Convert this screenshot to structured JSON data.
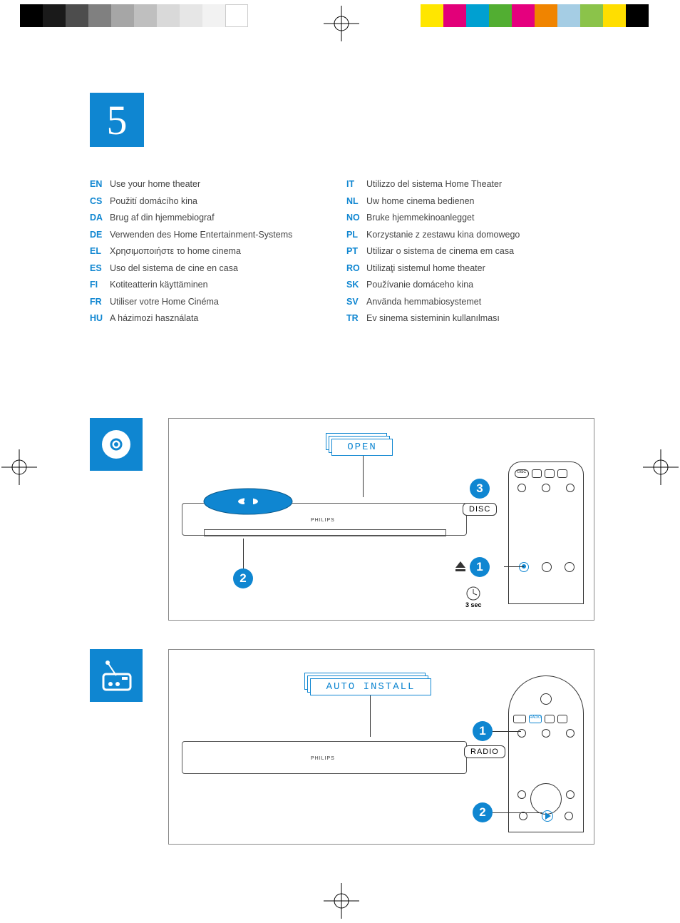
{
  "colors": {
    "accent": "#0f86d1",
    "text": "#444444",
    "border": "#888888"
  },
  "print_marks": {
    "gray_scale": [
      "#000000",
      "#1a1a1a",
      "#4d4d4d",
      "#808080",
      "#a6a6a6",
      "#bfbfbf",
      "#d9d9d9",
      "#e6e6e6",
      "#f2f2f2",
      "#ffffff"
    ],
    "color_bar": [
      "#ffe600",
      "#e20079",
      "#00a0d1",
      "#52ae32",
      "#e5007e",
      "#f08400",
      "#a5cde4",
      "#8bc34a",
      "#ffde00",
      "#000000"
    ]
  },
  "section_number": "5",
  "languages_left": [
    {
      "code": "EN",
      "text": "Use your home theater"
    },
    {
      "code": "CS",
      "text": "Použití domácího kina"
    },
    {
      "code": "DA",
      "text": "Brug af din hjemmebiograf"
    },
    {
      "code": "DE",
      "text": "Verwenden des Home Entertainment-Systems"
    },
    {
      "code": "EL",
      "text": "Χρησιμοποιήστε το home cinema"
    },
    {
      "code": "ES",
      "text": "Uso del sistema de cine en casa"
    },
    {
      "code": "FI",
      "text": "Kotiteatterin käyttäminen"
    },
    {
      "code": "FR",
      "text": "Utiliser votre Home Cinéma"
    },
    {
      "code": "HU",
      "text": "A házimozi használata"
    }
  ],
  "languages_right": [
    {
      "code": "IT",
      "text": "Utilizzo del sistema Home Theater"
    },
    {
      "code": "NL",
      "text": "Uw home cinema bedienen"
    },
    {
      "code": "NO",
      "text": "Bruke hjemmekinoanlegget"
    },
    {
      "code": "PL",
      "text": "Korzystanie z zestawu kina domowego"
    },
    {
      "code": "PT",
      "text": "Utilizar o sistema de cinema em casa"
    },
    {
      "code": "RO",
      "text": "Utilizaţi sistemul home theater"
    },
    {
      "code": "SK",
      "text": "Používanie domáceho kina"
    },
    {
      "code": "SV",
      "text": "Använda hemmabiosystemet"
    },
    {
      "code": "TR",
      "text": "Ev sinema sisteminin kullanılması"
    }
  ],
  "panel_disc": {
    "display_text": "OPEN",
    "step1": "1",
    "step2": "2",
    "step3": "3",
    "button_label": "DISC",
    "wait_label": "3 sec",
    "brand": "PHILIPS"
  },
  "panel_radio": {
    "display_text": "AUTO INSTALL",
    "step1": "1",
    "step2": "2",
    "button_label": "RADIO",
    "brand": "PHILIPS"
  }
}
